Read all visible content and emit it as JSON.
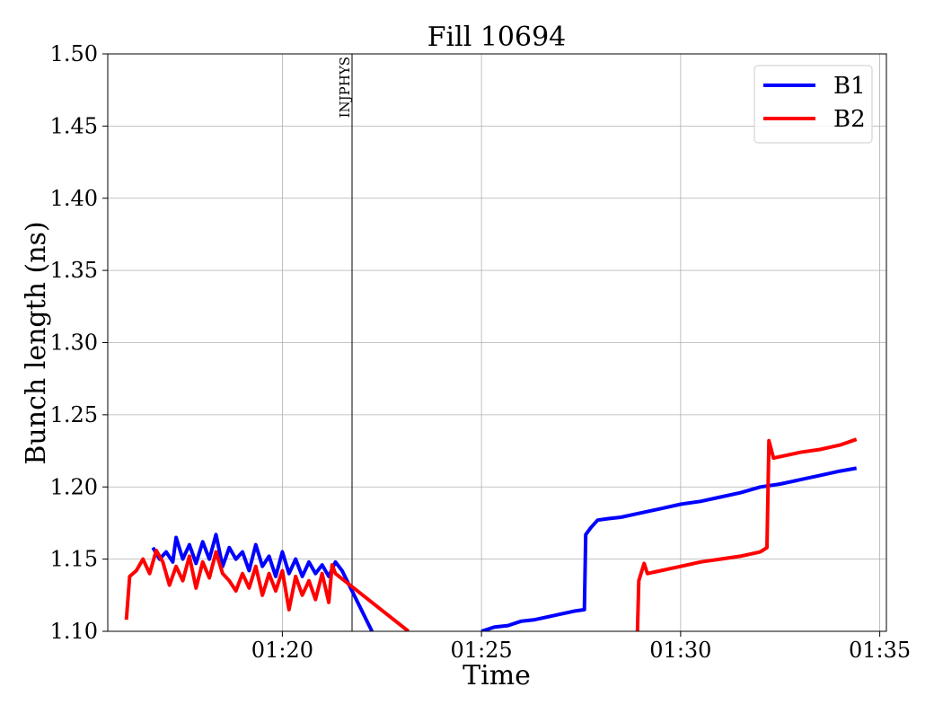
{
  "chart_data": {
    "type": "line",
    "title": "Fill 10694",
    "xlabel": "Time",
    "ylabel": "Bunch length (ns)",
    "x_unit": "time of day (hh:mm)",
    "xlim": [
      "01:15:37",
      "01:35:10"
    ],
    "ylim": [
      1.1,
      1.5
    ],
    "x_ticks": [
      "01:20",
      "01:25",
      "01:30",
      "01:35"
    ],
    "y_ticks": [
      "1.10",
      "1.15",
      "1.20",
      "1.25",
      "1.30",
      "1.35",
      "1.40",
      "1.45",
      "1.50"
    ],
    "grid": true,
    "legend_position": "top-right",
    "annotations": [
      {
        "label": "INJPHYS",
        "x": "01:21:45"
      }
    ],
    "series": [
      {
        "name": "B1",
        "color": "#0000ff",
        "points": [
          [
            "01:16:45",
            1.158
          ],
          [
            "01:16:55",
            1.15
          ],
          [
            "01:17:05",
            1.155
          ],
          [
            "01:17:15",
            1.148
          ],
          [
            "01:17:20",
            1.165
          ],
          [
            "01:17:30",
            1.15
          ],
          [
            "01:17:40",
            1.16
          ],
          [
            "01:17:50",
            1.147
          ],
          [
            "01:18:00",
            1.162
          ],
          [
            "01:18:10",
            1.15
          ],
          [
            "01:18:20",
            1.167
          ],
          [
            "01:18:30",
            1.145
          ],
          [
            "01:18:40",
            1.158
          ],
          [
            "01:18:50",
            1.15
          ],
          [
            "01:19:00",
            1.155
          ],
          [
            "01:19:10",
            1.142
          ],
          [
            "01:19:20",
            1.16
          ],
          [
            "01:19:30",
            1.145
          ],
          [
            "01:19:40",
            1.152
          ],
          [
            "01:19:50",
            1.138
          ],
          [
            "01:20:00",
            1.155
          ],
          [
            "01:20:10",
            1.14
          ],
          [
            "01:20:20",
            1.15
          ],
          [
            "01:20:30",
            1.138
          ],
          [
            "01:20:40",
            1.148
          ],
          [
            "01:20:50",
            1.14
          ],
          [
            "01:21:00",
            1.146
          ],
          [
            "01:21:10",
            1.138
          ],
          [
            "01:21:20",
            1.148
          ],
          [
            "01:21:30",
            1.142
          ],
          [
            "01:22:15",
            1.1
          ]
        ]
      },
      {
        "name": "B1",
        "color": "#0000ff",
        "points": [
          [
            "01:25:00",
            1.1
          ],
          [
            "01:25:20",
            1.103
          ],
          [
            "01:25:40",
            1.104
          ],
          [
            "01:26:00",
            1.107
          ],
          [
            "01:26:20",
            1.108
          ],
          [
            "01:26:40",
            1.11
          ],
          [
            "01:27:00",
            1.112
          ],
          [
            "01:27:20",
            1.114
          ],
          [
            "01:27:35",
            1.115
          ],
          [
            "01:27:37",
            1.167
          ],
          [
            "01:27:45",
            1.172
          ],
          [
            "01:27:55",
            1.177
          ],
          [
            "01:28:10",
            1.178
          ],
          [
            "01:28:30",
            1.179
          ],
          [
            "01:29:00",
            1.182
          ],
          [
            "01:29:30",
            1.185
          ],
          [
            "01:30:00",
            1.188
          ],
          [
            "01:30:30",
            1.19
          ],
          [
            "01:31:00",
            1.193
          ],
          [
            "01:31:30",
            1.196
          ],
          [
            "01:32:00",
            1.2
          ],
          [
            "01:32:30",
            1.202
          ],
          [
            "01:33:00",
            1.205
          ],
          [
            "01:33:30",
            1.208
          ],
          [
            "01:34:00",
            1.211
          ],
          [
            "01:34:25",
            1.213
          ]
        ]
      },
      {
        "name": "B2",
        "color": "#ff0000",
        "points": [
          [
            "01:16:05",
            1.108
          ],
          [
            "01:16:10",
            1.138
          ],
          [
            "01:16:20",
            1.142
          ],
          [
            "01:16:30",
            1.15
          ],
          [
            "01:16:40",
            1.14
          ],
          [
            "01:16:50",
            1.156
          ],
          [
            "01:17:00",
            1.148
          ],
          [
            "01:17:10",
            1.132
          ],
          [
            "01:17:20",
            1.145
          ],
          [
            "01:17:30",
            1.135
          ],
          [
            "01:17:40",
            1.152
          ],
          [
            "01:17:50",
            1.13
          ],
          [
            "01:18:00",
            1.148
          ],
          [
            "01:18:10",
            1.137
          ],
          [
            "01:18:20",
            1.155
          ],
          [
            "01:18:30",
            1.14
          ],
          [
            "01:18:40",
            1.135
          ],
          [
            "01:18:50",
            1.128
          ],
          [
            "01:19:00",
            1.14
          ],
          [
            "01:19:10",
            1.13
          ],
          [
            "01:19:20",
            1.145
          ],
          [
            "01:19:30",
            1.125
          ],
          [
            "01:19:40",
            1.14
          ],
          [
            "01:19:50",
            1.128
          ],
          [
            "01:20:00",
            1.142
          ],
          [
            "01:20:10",
            1.115
          ],
          [
            "01:20:20",
            1.138
          ],
          [
            "01:20:30",
            1.125
          ],
          [
            "01:20:40",
            1.135
          ],
          [
            "01:20:50",
            1.122
          ],
          [
            "01:21:00",
            1.14
          ],
          [
            "01:21:10",
            1.12
          ],
          [
            "01:21:15",
            1.146
          ],
          [
            "01:21:20",
            1.14
          ],
          [
            "01:23:10",
            1.1
          ]
        ]
      },
      {
        "name": "B2",
        "color": "#ff0000",
        "points": [
          [
            "01:28:55",
            1.1
          ],
          [
            "01:28:57",
            1.135
          ],
          [
            "01:29:05",
            1.147
          ],
          [
            "01:29:10",
            1.14
          ],
          [
            "01:29:30",
            1.142
          ],
          [
            "01:30:00",
            1.145
          ],
          [
            "01:30:30",
            1.148
          ],
          [
            "01:31:00",
            1.15
          ],
          [
            "01:31:30",
            1.152
          ],
          [
            "01:32:00",
            1.155
          ],
          [
            "01:32:10",
            1.158
          ],
          [
            "01:32:13",
            1.232
          ],
          [
            "01:32:20",
            1.22
          ],
          [
            "01:32:40",
            1.222
          ],
          [
            "01:33:00",
            1.224
          ],
          [
            "01:33:30",
            1.226
          ],
          [
            "01:34:00",
            1.229
          ],
          [
            "01:34:25",
            1.233
          ]
        ]
      }
    ]
  }
}
